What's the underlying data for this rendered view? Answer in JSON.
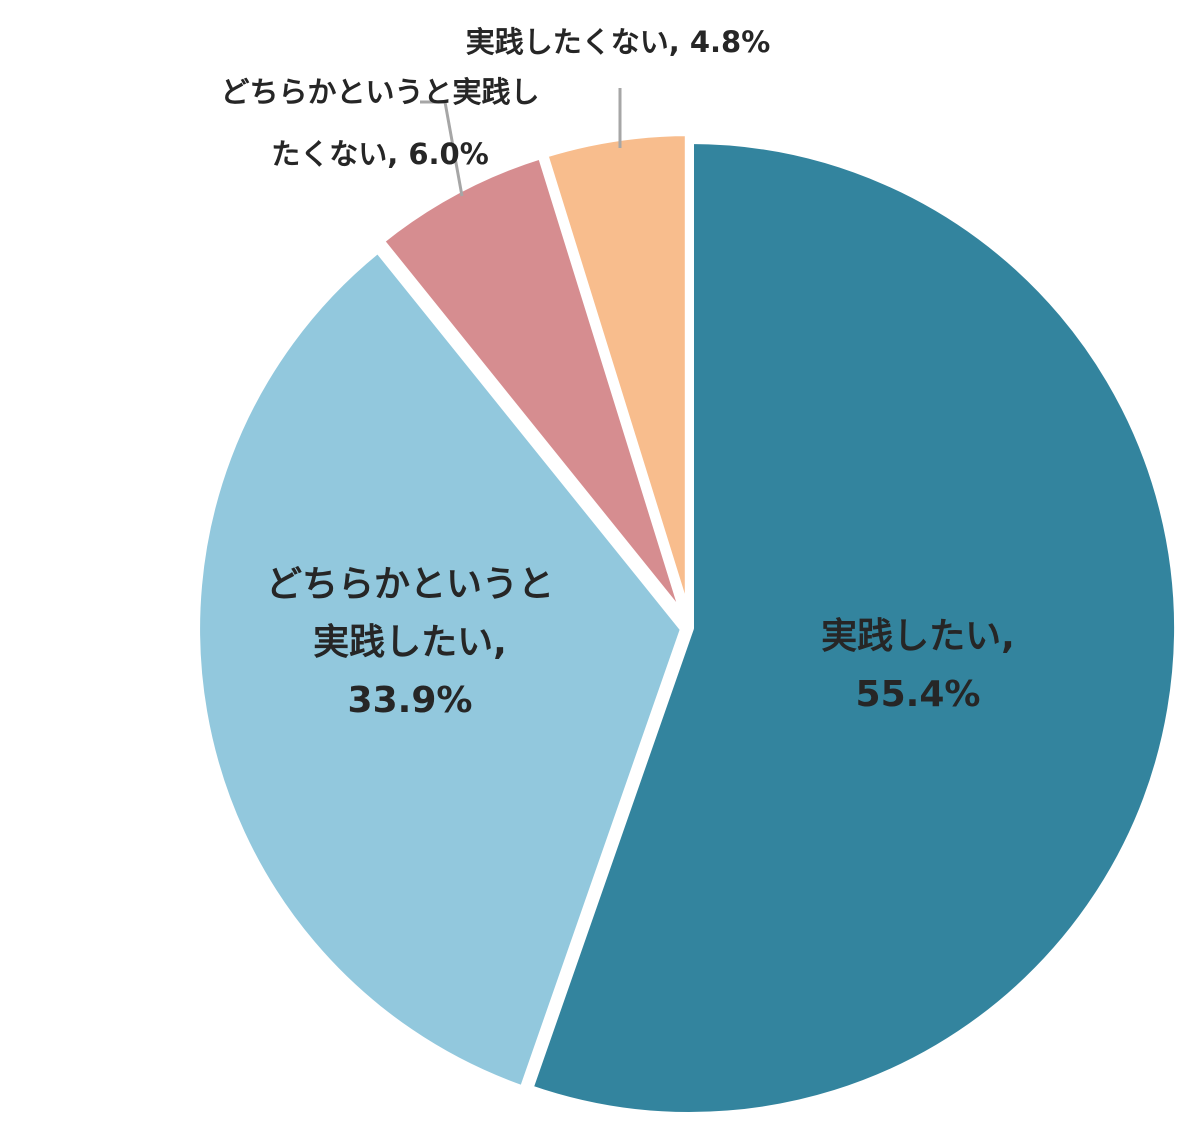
{
  "chart_data": {
    "type": "pie",
    "title": "",
    "start": "12 o'clock",
    "direction": "clockwise",
    "slices": [
      {
        "label": "実践したい",
        "value": 55.4,
        "value_text": "55.4%",
        "color": "#33849e",
        "label_lines": [
          "実践したい,",
          "55.4%"
        ],
        "label_position": "inside"
      },
      {
        "label": "どちらかというと実践したい",
        "value": 33.9,
        "value_text": "33.9%",
        "color": "#92c8dd",
        "label_lines": [
          "どちらかというと",
          "実践したい,",
          "33.9%"
        ],
        "label_position": "inside"
      },
      {
        "label": "どちらかというと実践したくない",
        "value": 6.0,
        "value_text": "6.0%",
        "color": "#d68d90",
        "label_lines": [
          "どちらかというと実践し",
          "たくない, 6.0%"
        ],
        "label_position": "outside"
      },
      {
        "label": "実践したくない",
        "value": 4.8,
        "value_text": "4.8%",
        "color": "#f8bd8d",
        "label_lines": [
          "実践したくない, 4.8%"
        ],
        "label_position": "outside"
      }
    ]
  }
}
